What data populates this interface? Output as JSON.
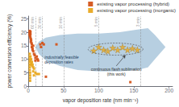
{
  "chart_data": {
    "type": "scatter",
    "xlabel": "vapor deposition rate (nm min⁻¹)",
    "ylabel": "power conversion efficiency (%)",
    "xlim": [
      0,
      205
    ],
    "ylim": [
      0,
      26
    ],
    "xticks": [
      0,
      50,
      100,
      150,
      200
    ],
    "yticks": [
      0,
      5,
      10,
      15,
      20,
      25
    ],
    "grid": false,
    "legend": "upper right",
    "series": [
      {
        "name": "existing vapor processing (hybrid)",
        "color": "#d4541a",
        "marker": "square",
        "x": [
          2,
          2,
          2,
          2,
          2.5,
          3,
          3,
          3,
          3.5,
          3.5,
          4,
          4.5,
          5,
          5,
          6,
          6,
          7,
          7,
          8,
          9,
          10,
          10,
          12,
          13,
          14,
          17,
          18,
          20,
          22,
          25,
          40,
          145
        ],
        "values": [
          20.5,
          20.0,
          19.5,
          19.0,
          18.5,
          20.2,
          19.3,
          18.0,
          17.5,
          16.5,
          17.0,
          16.0,
          15.5,
          14.5,
          13.5,
          14.0,
          13.0,
          15.0,
          12.0,
          11.5,
          10.5,
          9.5,
          11.0,
          10.0,
          9.5,
          15.5,
          14.5,
          16.0,
          15.5,
          3.5,
          15.5,
          1.5
        ]
      },
      {
        "name": "existing vapor processing (inorganic)",
        "color": "#e8a820",
        "marker": "square",
        "x": [
          2,
          2,
          2,
          2,
          2,
          2,
          2,
          2.5,
          2.5,
          2.5,
          2.5,
          3,
          3,
          3.5,
          4,
          4.5,
          5,
          5.5,
          6,
          7,
          7,
          8,
          8,
          10,
          12,
          15
        ],
        "values": [
          12.0,
          11.0,
          10.0,
          9.0,
          8.0,
          7.0,
          6.0,
          5.0,
          4.0,
          3.0,
          2.0,
          11.0,
          9.5,
          8.0,
          10.0,
          8.5,
          9.0,
          7.5,
          8.0,
          7.0,
          5.5,
          6.5,
          4.0,
          5.0,
          4.5,
          4.5
        ]
      },
      {
        "color": "#e8a820",
        "marker": "star",
        "x": [
          93,
          100,
          107,
          113,
          120,
          127,
          134,
          141,
          148,
          155
        ],
        "values": [
          13.2,
          14.5,
          13.5,
          13.0,
          14.2,
          13.5,
          14.5,
          13.5,
          14.0,
          13.5
        ]
      }
    ],
    "band": {
      "color": "#7ba7c9",
      "x": [
        10,
        15,
        25,
        45,
        70,
        100,
        130,
        155,
        170,
        180,
        195
      ],
      "upper": [
        14.5,
        16.5,
        18.0,
        19.0,
        19.5,
        19.5,
        20.0,
        21.0,
        21.5,
        19.0,
        14.5
      ],
      "lower": [
        14.5,
        12.0,
        9.5,
        7.5,
        6.0,
        5.5,
        5.5,
        6.0,
        7.0,
        10.0,
        14.5
      ]
    },
    "vlines": [
      {
        "value": 10,
        "label": "60 min"
      },
      {
        "value": 20,
        "label": "30 min"
      },
      {
        "value": 50,
        "label": "10 min"
      },
      {
        "value": 100,
        "label": "5 min"
      },
      {
        "value": 160,
        "label": "3 min"
      }
    ],
    "annotations": [
      {
        "text": "industrially feasible\ndeposition rates",
        "x": 22,
        "y": 10.0
      },
      {
        "text": "continuous flash sublimation\n(this work)",
        "x": 125,
        "y": 7.5,
        "arrow_to": [
          138,
          11.5
        ]
      }
    ]
  }
}
